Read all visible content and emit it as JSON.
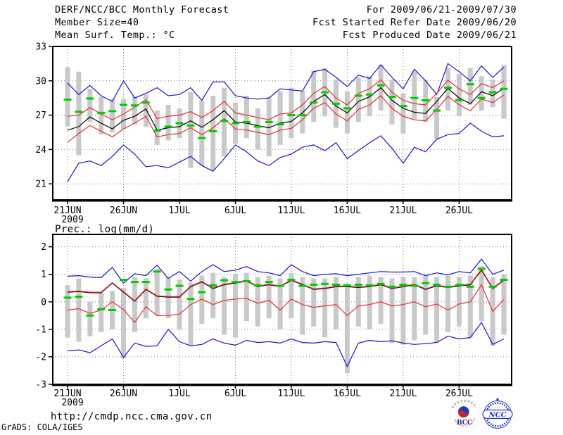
{
  "header": {
    "left": [
      "DERF/NCC/BCC Monthly Forecast",
      "Member Size=40",
      "Mean Surf. Temp.: °C"
    ],
    "right": [
      "For 2009/06/21-2009/07/30",
      "Fcst Started Refer Date 2009/06/20",
      "Fcst Produced Date 2009/06/21"
    ]
  },
  "footer": {
    "url": "http://cmdp.ncc.cma.gov.cn",
    "credit": "GrADS: COLA/IGES"
  },
  "logos": {
    "bcc": {
      "label": "BCC",
      "ring_text": "BEIJING CLIMATE CENTER"
    },
    "ncc": {
      "label": "NCC"
    }
  },
  "colors": {
    "blue": "#1414cd",
    "red": "#e62e2e",
    "green": "#00cc00",
    "black": "#000000",
    "bar_gray": "#c9c9c9",
    "grid": "#808080"
  },
  "chart_data": [
    {
      "type": "line",
      "title": "Mean Surf. Temp.: °C",
      "x_start": "21JUN2009",
      "x_end": "30JUL2009",
      "x_ticks": [
        "21JUN",
        "26JUN",
        "1JUL",
        "6JUL",
        "11JUL",
        "16JUL",
        "21JUL",
        "26JUL"
      ],
      "x_tick_days": [
        0,
        5,
        10,
        15,
        20,
        25,
        30,
        35
      ],
      "x_year_label": "2009",
      "y_ticks": [
        21,
        24,
        27,
        30,
        33
      ],
      "ylim": [
        19.6,
        33
      ],
      "grid": true,
      "series": [
        {
          "name": "blue-upper-envelope",
          "color": "blue",
          "values": [
            29.8,
            28.8,
            29.6,
            28.7,
            28.2,
            30.0,
            28.5,
            28.9,
            29.4,
            28.7,
            28.8,
            29.4,
            28.3,
            29.9,
            29.9,
            28.7,
            28.5,
            28.4,
            28.5,
            29.3,
            29.2,
            29.1,
            30.8,
            31.0,
            30.3,
            29.5,
            30.5,
            30.2,
            31.4,
            30.3,
            29.3,
            31.0,
            30.0,
            28.8,
            31.5,
            30.8,
            30.0,
            31.3,
            30.3,
            31.2
          ]
        },
        {
          "name": "blue-lower-envelope",
          "color": "blue",
          "values": [
            21.2,
            22.8,
            23.0,
            22.6,
            23.4,
            24.4,
            23.6,
            22.5,
            22.6,
            22.4,
            22.9,
            23.4,
            22.6,
            22.1,
            23.2,
            24.4,
            23.8,
            23.0,
            22.6,
            23.3,
            23.6,
            24.2,
            24.4,
            23.9,
            24.6,
            23.2,
            23.9,
            24.6,
            25.2,
            24.1,
            22.8,
            24.2,
            23.8,
            24.9,
            25.3,
            25.4,
            26.3,
            25.6,
            25.1,
            25.2
          ]
        },
        {
          "name": "red-lower",
          "color": "red",
          "values": [
            24.65,
            25.4,
            26.1,
            25.6,
            25.1,
            25.8,
            26.3,
            26.9,
            25.1,
            25.3,
            25.4,
            25.9,
            25.3,
            25.9,
            26.7,
            25.8,
            25.7,
            25.5,
            25.3,
            25.7,
            25.85,
            26.6,
            27.6,
            28.1,
            27.1,
            26.5,
            27.5,
            27.9,
            28.7,
            27.6,
            26.9,
            26.6,
            26.5,
            27.5,
            28.65,
            27.9,
            27.4,
            28.4,
            28.1,
            28.75
          ]
        },
        {
          "name": "ensemble-mean",
          "color": "black",
          "values": [
            25.7,
            26.0,
            26.85,
            26.3,
            25.8,
            26.55,
            26.9,
            27.55,
            25.7,
            25.9,
            26.0,
            26.5,
            25.95,
            26.6,
            27.4,
            26.4,
            26.3,
            26.1,
            25.9,
            26.3,
            26.45,
            27.2,
            28.2,
            28.8,
            27.8,
            27.2,
            28.2,
            28.6,
            29.4,
            28.3,
            27.6,
            27.25,
            27.15,
            28.2,
            29.35,
            28.5,
            28.0,
            29.05,
            28.7,
            29.35
          ]
        },
        {
          "name": "red-upper",
          "color": "red",
          "values": [
            26.9,
            27.0,
            27.65,
            27.1,
            26.6,
            27.1,
            27.7,
            28.35,
            26.7,
            26.9,
            27.0,
            27.3,
            26.8,
            27.4,
            28.2,
            27.2,
            27.0,
            26.8,
            26.6,
            27.1,
            27.2,
            27.9,
            28.9,
            29.5,
            28.5,
            27.9,
            28.9,
            29.3,
            30.1,
            29.0,
            28.3,
            28.0,
            27.9,
            28.9,
            30.05,
            29.3,
            28.8,
            29.75,
            29.4,
            30.0
          ]
        }
      ],
      "green_dashes": {
        "name": "green-dash-markers",
        "values": [
          28.35,
          27.3,
          28.45,
          27.2,
          27.35,
          27.9,
          27.85,
          28.1,
          25.65,
          26.0,
          26.3,
          26.1,
          25.0,
          25.6,
          26.5,
          26.3,
          26.4,
          26.0,
          26.4,
          26.2,
          27.0,
          27.0,
          28.1,
          29.0,
          28.0,
          27.6,
          28.7,
          28.8,
          29.6,
          28.6,
          27.8,
          28.5,
          28.3,
          27.4,
          29.4,
          28.3,
          29.7,
          28.5,
          29.0,
          29.3
        ]
      },
      "bars": {
        "name": "ensemble-spread-bars",
        "low": [
          26.0,
          23.5,
          26.4,
          25.3,
          25.5,
          25.8,
          26.2,
          26.0,
          24.4,
          24.8,
          25.0,
          22.4,
          22.6,
          22.2,
          23.4,
          24.5,
          25.0,
          24.0,
          23.4,
          24.4,
          25.0,
          25.4,
          26.4,
          26.9,
          25.9,
          25.4,
          26.4,
          26.9,
          27.4,
          26.2,
          25.4,
          26.7,
          26.4,
          24.9,
          27.4,
          26.9,
          27.9,
          27.4,
          27.7,
          26.7
        ],
        "high": [
          31.2,
          30.8,
          29.3,
          28.6,
          28.4,
          28.4,
          28.6,
          28.8,
          27.4,
          27.9,
          27.6,
          29.0,
          28.3,
          28.7,
          29.4,
          28.1,
          28.7,
          27.6,
          28.6,
          29.1,
          29.4,
          29.1,
          30.9,
          31.1,
          30.1,
          29.1,
          30.3,
          30.4,
          31.4,
          30.1,
          28.9,
          30.8,
          30.1,
          28.6,
          31.1,
          30.6,
          31.1,
          30.4,
          30.1,
          31.4
        ]
      }
    },
    {
      "type": "line",
      "title": "Prec.: log(mm/d)",
      "x_start": "21JUN2009",
      "x_end": "30JUL2009",
      "x_ticks": [
        "21JUN",
        "26JUN",
        "1JUL",
        "6JUL",
        "11JUL",
        "16JUL",
        "21JUL",
        "26JUL"
      ],
      "x_tick_days": [
        0,
        5,
        10,
        15,
        20,
        25,
        30,
        35
      ],
      "x_year_label": "2009",
      "y_ticks": [
        -3,
        -2,
        -1,
        0,
        1,
        2
      ],
      "ylim": [
        -3,
        2.45
      ],
      "grid": true,
      "series": [
        {
          "name": "blue-upper-envelope",
          "color": "blue",
          "values": [
            0.93,
            0.95,
            0.9,
            0.88,
            1.25,
            0.68,
            1.02,
            0.95,
            1.33,
            0.85,
            1.1,
            0.75,
            1.1,
            1.35,
            1.1,
            1.15,
            1.28,
            1.1,
            1.05,
            0.95,
            1.35,
            1.1,
            0.95,
            1.0,
            1.02,
            0.95,
            1.0,
            1.05,
            1.1,
            1.08,
            1.08,
            1.1,
            0.95,
            1.05,
            0.98,
            1.1,
            1.05,
            1.55,
            1.0,
            1.15
          ]
        },
        {
          "name": "blue-lower-envelope",
          "color": "blue",
          "values": [
            -1.78,
            -1.75,
            -1.85,
            -1.6,
            -1.35,
            -2.02,
            -1.5,
            -1.62,
            -1.6,
            -1.0,
            -1.45,
            -1.6,
            -1.55,
            -1.35,
            -1.5,
            -1.58,
            -1.4,
            -1.48,
            -1.45,
            -1.5,
            -1.35,
            -1.48,
            -1.5,
            -1.45,
            -1.48,
            -2.35,
            -1.5,
            -1.4,
            -1.45,
            -1.42,
            -1.5,
            -1.55,
            -1.52,
            -1.48,
            -1.25,
            -1.35,
            -1.3,
            -0.75,
            -1.55,
            -1.35
          ]
        },
        {
          "name": "red-lower",
          "color": "red",
          "values": [
            -0.3,
            -0.25,
            -0.42,
            -0.3,
            0.0,
            -0.28,
            -0.75,
            -0.18,
            -0.5,
            -0.5,
            -0.45,
            -0.1,
            0.1,
            -0.1,
            0.05,
            0.1,
            0.12,
            -0.05,
            0.05,
            -0.3,
            0.1,
            -0.1,
            -0.2,
            -0.15,
            -0.1,
            -0.5,
            -0.15,
            -0.1,
            0.0,
            -0.15,
            -0.1,
            0.0,
            -0.18,
            -0.08,
            -0.3,
            -0.08,
            0.0,
            0.62,
            -0.35,
            0.08
          ]
        },
        {
          "name": "ensemble-mean",
          "color": "black",
          "values": [
            0.35,
            0.37,
            0.33,
            0.33,
            0.68,
            0.35,
            0.02,
            0.45,
            0.2,
            0.17,
            0.17,
            0.55,
            0.72,
            0.48,
            0.62,
            0.68,
            0.75,
            0.55,
            0.62,
            0.55,
            0.78,
            0.62,
            0.45,
            0.48,
            0.55,
            0.55,
            0.52,
            0.55,
            0.62,
            0.48,
            0.55,
            0.62,
            0.45,
            0.58,
            0.52,
            0.58,
            0.62,
            1.15,
            0.48,
            0.78
          ]
        },
        {
          "name": "red-upper",
          "color": "red",
          "values": [
            0.37,
            0.39,
            0.35,
            0.35,
            0.7,
            0.37,
            0.04,
            0.47,
            0.22,
            0.19,
            0.19,
            0.57,
            0.74,
            0.5,
            0.64,
            0.7,
            0.77,
            0.57,
            0.64,
            0.57,
            0.8,
            0.64,
            0.47,
            0.5,
            0.57,
            0.57,
            0.54,
            0.57,
            0.64,
            0.5,
            0.57,
            0.64,
            0.47,
            0.6,
            0.54,
            0.6,
            0.64,
            1.18,
            0.5,
            0.8
          ]
        }
      ],
      "green_dashes": {
        "name": "green-dash-markers",
        "values": [
          0.15,
          0.18,
          -0.5,
          -0.27,
          -0.3,
          0.8,
          0.72,
          0.72,
          1.1,
          0.45,
          0.58,
          0.1,
          0.35,
          0.6,
          0.78,
          0.72,
          0.75,
          0.6,
          0.72,
          0.58,
          0.8,
          0.58,
          0.62,
          0.65,
          0.62,
          0.6,
          0.62,
          0.6,
          0.65,
          0.55,
          0.62,
          0.58,
          0.68,
          0.62,
          0.55,
          0.62,
          0.55,
          1.2,
          0.55,
          0.8
        ]
      },
      "bars": {
        "name": "ensemble-spread-bars",
        "low": [
          -1.3,
          -1.45,
          -1.25,
          -1.1,
          -1.0,
          -2.05,
          -1.1,
          -0.6,
          -0.5,
          -0.6,
          -1.0,
          -1.6,
          -0.8,
          -0.6,
          -1.2,
          -1.3,
          -0.7,
          -0.9,
          -0.6,
          -1.0,
          -0.6,
          -1.2,
          -0.9,
          -1.3,
          -1.0,
          -2.6,
          -0.9,
          -1.0,
          -0.8,
          -1.5,
          -1.55,
          -1.4,
          -1.2,
          -1.5,
          -1.1,
          -0.9,
          -1.3,
          -0.7,
          -1.6,
          -1.2
        ],
        "high": [
          0.6,
          0.85,
          0.0,
          0.35,
          0.4,
          0.5,
          0.9,
          0.85,
          1.2,
          0.9,
          0.8,
          0.7,
          0.95,
          1.05,
          0.9,
          1.0,
          1.05,
          0.9,
          0.95,
          0.85,
          1.05,
          0.9,
          0.85,
          0.85,
          0.9,
          0.6,
          0.9,
          0.95,
          0.9,
          0.85,
          0.9,
          0.9,
          0.95,
          0.9,
          0.95,
          0.9,
          0.95,
          1.3,
          0.9,
          1.0
        ]
      }
    }
  ]
}
